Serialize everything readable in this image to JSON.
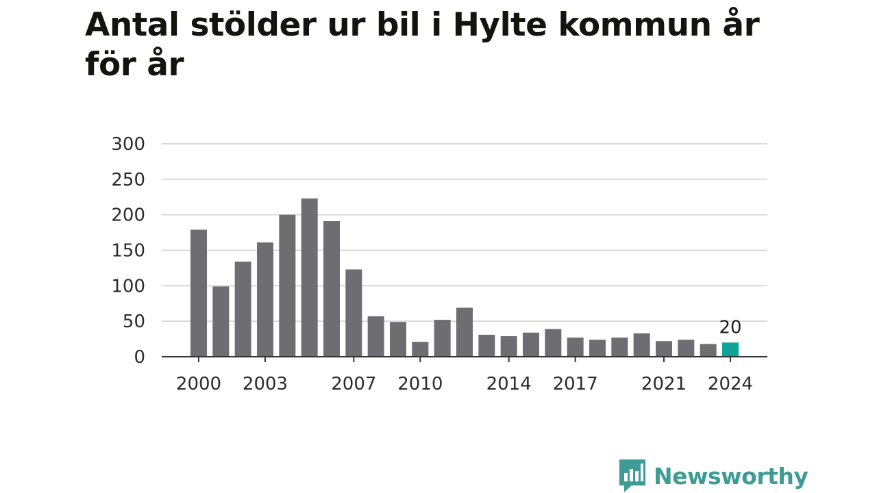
{
  "title": "Antal stölder ur bil i Hylte kommun år för år",
  "brand": {
    "name": "Newsworthy",
    "icon": "newsworthy-logo-icon",
    "color": "#3d9c95"
  },
  "colors": {
    "bar": "#6e6d72",
    "highlight": "#0ea39a",
    "grid": "#d9d9d9",
    "axis": "#333333"
  },
  "chart_data": {
    "type": "bar",
    "title": "Antal stölder ur bil i Hylte kommun år för år",
    "xlabel": "",
    "ylabel": "",
    "ylim": [
      0,
      300
    ],
    "yticks": [
      0,
      50,
      100,
      150,
      200,
      250,
      300
    ],
    "grid": true,
    "categories": [
      2000,
      2001,
      2002,
      2003,
      2004,
      2005,
      2006,
      2007,
      2008,
      2009,
      2010,
      2011,
      2012,
      2013,
      2014,
      2015,
      2016,
      2017,
      2018,
      2019,
      2020,
      2021,
      2022,
      2023,
      2024
    ],
    "xtick_labels": [
      2000,
      2003,
      2007,
      2010,
      2014,
      2017,
      2021,
      2024
    ],
    "values": [
      179,
      99,
      134,
      161,
      200,
      223,
      191,
      123,
      57,
      49,
      21,
      52,
      69,
      31,
      29,
      34,
      39,
      27,
      24,
      27,
      33,
      22,
      24,
      18,
      20
    ],
    "highlight_index": 24,
    "annotations": [
      {
        "category": 2024,
        "text": "20"
      }
    ]
  }
}
